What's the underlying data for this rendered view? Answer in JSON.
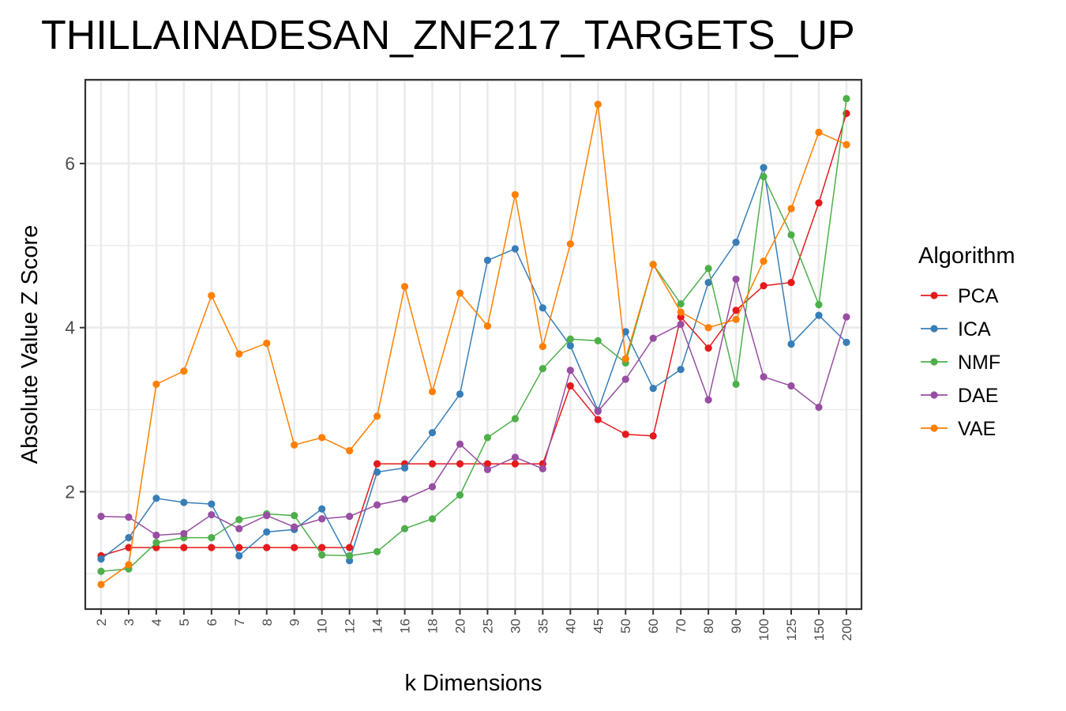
{
  "chart_data": {
    "type": "line",
    "title": "THILLAINADESAN_ZNF217_TARGETS_UP",
    "xlabel": "k Dimensions",
    "ylabel": "Absolute Value Z Score",
    "categories": [
      "2",
      "3",
      "4",
      "5",
      "6",
      "7",
      "8",
      "9",
      "10",
      "12",
      "14",
      "16",
      "18",
      "20",
      "25",
      "30",
      "35",
      "40",
      "45",
      "50",
      "60",
      "70",
      "80",
      "90",
      "100",
      "125",
      "150",
      "200"
    ],
    "yticks": [
      2,
      4,
      6
    ],
    "ylim": [
      0.57,
      7.02
    ],
    "grid": true,
    "legend_title": "Algorithm",
    "legend_position": "right",
    "series": [
      {
        "name": "PCA",
        "color": "#E41A1C",
        "values": [
          1.22,
          1.32,
          1.32,
          1.32,
          1.32,
          1.32,
          1.32,
          1.32,
          1.32,
          1.32,
          2.34,
          2.34,
          2.34,
          2.34,
          2.34,
          2.34,
          2.34,
          3.29,
          2.88,
          2.7,
          2.68,
          4.13,
          3.75,
          4.21,
          4.51,
          4.55,
          5.52,
          6.61
        ]
      },
      {
        "name": "ICA",
        "color": "#377EB8",
        "values": [
          1.18,
          1.44,
          1.92,
          1.87,
          1.85,
          1.22,
          1.51,
          1.54,
          1.79,
          1.16,
          2.24,
          2.29,
          2.72,
          3.19,
          4.82,
          4.96,
          4.24,
          3.78,
          2.99,
          3.95,
          3.26,
          3.49,
          4.55,
          5.04,
          5.95,
          3.8,
          4.15,
          3.82
        ]
      },
      {
        "name": "NMF",
        "color": "#4DAF4A",
        "values": [
          1.03,
          1.06,
          1.38,
          1.44,
          1.44,
          1.66,
          1.73,
          1.71,
          1.23,
          1.22,
          1.27,
          1.55,
          1.67,
          1.96,
          2.66,
          2.89,
          3.5,
          3.86,
          3.84,
          3.57,
          4.77,
          4.29,
          4.72,
          3.31,
          5.84,
          5.13,
          4.28,
          6.79
        ]
      },
      {
        "name": "DAE",
        "color": "#984EA3",
        "values": [
          1.7,
          1.69,
          1.47,
          1.49,
          1.72,
          1.55,
          1.71,
          1.57,
          1.67,
          1.7,
          1.84,
          1.91,
          2.06,
          2.58,
          2.27,
          2.42,
          2.28,
          3.48,
          2.98,
          3.37,
          3.87,
          4.04,
          3.12,
          4.59,
          3.4,
          3.29,
          3.03,
          4.13
        ]
      },
      {
        "name": "VAE",
        "color": "#FF7F00",
        "values": [
          0.87,
          1.11,
          3.31,
          3.47,
          4.39,
          3.68,
          3.81,
          2.57,
          2.66,
          2.5,
          2.92,
          4.5,
          3.22,
          4.42,
          4.02,
          5.62,
          3.77,
          5.02,
          6.72,
          3.62,
          4.77,
          4.19,
          4.0,
          4.1,
          4.81,
          5.45,
          6.38,
          6.23
        ]
      }
    ]
  }
}
